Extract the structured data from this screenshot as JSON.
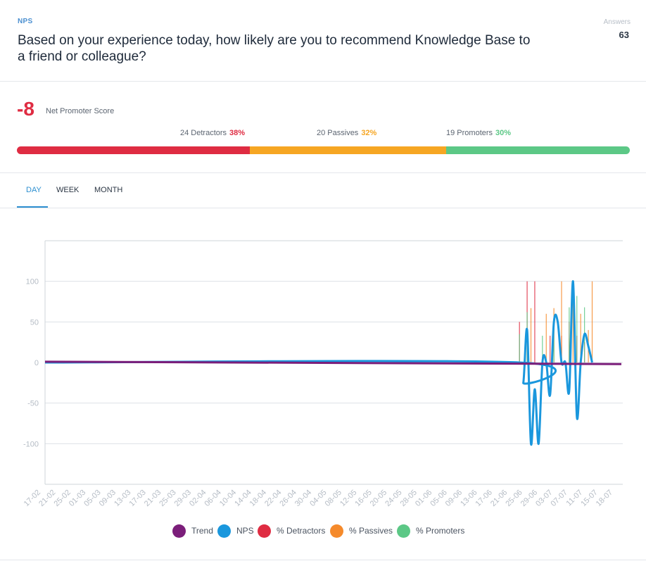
{
  "header": {
    "tag": "NPS",
    "question": "Based on your experience today, how likely are you to recommend Knowledge Base to a friend or colleague?",
    "answers_label": "Answers",
    "answers_count": "63"
  },
  "summary": {
    "score": "-8",
    "score_label": "Net Promoter Score",
    "segments": [
      {
        "label": "24 Detractors",
        "pct": "38%",
        "fraction": 0.38,
        "color": "#df2c42"
      },
      {
        "label": "20 Passives",
        "pct": "32%",
        "fraction": 0.32,
        "color": "#f6a623"
      },
      {
        "label": "19 Promoters",
        "pct": "30%",
        "fraction": 0.3,
        "color": "#5cc886"
      }
    ]
  },
  "tabs": [
    {
      "label": "DAY",
      "active": true
    },
    {
      "label": "WEEK",
      "active": false
    },
    {
      "label": "MONTH",
      "active": false
    }
  ],
  "chart_data": {
    "type": "line",
    "ylim": [
      -150,
      150
    ],
    "yticks": [
      -100,
      -50,
      0,
      50,
      100
    ],
    "xlabels": [
      "17-02",
      "21-02",
      "25-02",
      "01-03",
      "05-03",
      "09-03",
      "13-03",
      "17-03",
      "21-03",
      "25-03",
      "29-03",
      "02-04",
      "06-04",
      "10-04",
      "14-04",
      "18-04",
      "22-04",
      "26-04",
      "30-04",
      "04-05",
      "08-05",
      "12-05",
      "16-05",
      "20-05",
      "24-05",
      "28-05",
      "01-06",
      "05-06",
      "09-06",
      "13-06",
      "17-06",
      "21-06",
      "25-06",
      "29-06",
      "03-07",
      "07-07",
      "11-07",
      "15-07",
      "18-07"
    ],
    "day_count": 151,
    "legend": [
      {
        "name": "Trend",
        "color": "#7b1e7a"
      },
      {
        "name": "NPS",
        "color": "#1a97dd"
      },
      {
        "name": "% Detractors",
        "color": "#df2c42"
      },
      {
        "name": "% Passives",
        "color": "#f58a2b"
      },
      {
        "name": "% Promoters",
        "color": "#5cc886"
      }
    ],
    "series": {
      "trend": {
        "start": 1,
        "end": -2
      },
      "nps": [
        [
          0,
          0
        ],
        [
          124,
          0
        ],
        [
          125,
          -25
        ],
        [
          126,
          40
        ],
        [
          127,
          -100
        ],
        [
          128,
          -33
        ],
        [
          129,
          -100
        ],
        [
          130,
          0
        ],
        [
          131,
          0
        ],
        [
          132,
          -40
        ],
        [
          133,
          50
        ],
        [
          134,
          50
        ],
        [
          135,
          0
        ],
        [
          136,
          0
        ],
        [
          137,
          -35
        ],
        [
          138,
          100
        ],
        [
          139,
          -67
        ],
        [
          140,
          0
        ],
        [
          141,
          35
        ],
        [
          142,
          20
        ],
        [
          143,
          0
        ]
      ],
      "detractors": [
        [
          124,
          50
        ],
        [
          126,
          100
        ],
        [
          128,
          100
        ],
        [
          132,
          33
        ],
        [
          135,
          33
        ],
        [
          137,
          50
        ],
        [
          139,
          33
        ],
        [
          141,
          25
        ]
      ],
      "passives": [
        [
          124,
          0
        ],
        [
          127,
          67
        ],
        [
          131,
          60
        ],
        [
          133,
          67
        ],
        [
          135,
          100
        ],
        [
          137,
          30
        ],
        [
          138,
          100
        ],
        [
          140,
          60
        ],
        [
          142,
          40
        ],
        [
          143,
          100
        ]
      ],
      "promoters": [
        [
          124,
          35
        ],
        [
          126,
          62
        ],
        [
          130,
          33
        ],
        [
          133,
          55
        ],
        [
          137,
          68
        ],
        [
          139,
          82
        ],
        [
          141,
          68
        ]
      ]
    }
  }
}
